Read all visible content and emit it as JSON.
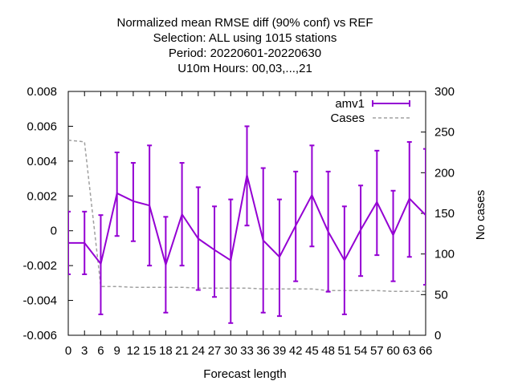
{
  "chart_data": {
    "type": "line",
    "title_lines": [
      "Normalized mean RMSE diff (90% conf) vs REF",
      "Selection: ALL using  1015 stations",
      "Period: 20220601-20220630",
      "U10m   Hours:  00,03,...,21"
    ],
    "xlabel": "Forecast length",
    "ylabel": "",
    "y2label": "No cases",
    "x_ticks": [
      0,
      3,
      6,
      9,
      12,
      15,
      18,
      21,
      24,
      27,
      30,
      33,
      36,
      39,
      42,
      45,
      48,
      51,
      54,
      57,
      60,
      63,
      66
    ],
    "xlim": [
      0,
      66
    ],
    "ylim": [
      -0.006,
      0.008
    ],
    "y_ticks": [
      -0.006,
      -0.004,
      -0.002,
      0,
      0.002,
      0.004,
      0.006,
      0.008
    ],
    "y_tick_labels": [
      "-0.006",
      "-0.004",
      "-0.002",
      "0",
      "0.002",
      "0.004",
      "0.006",
      "0.008"
    ],
    "y2lim": [
      0,
      300
    ],
    "y2_ticks": [
      0,
      50,
      100,
      150,
      200,
      250,
      300
    ],
    "legend_position": "top-right",
    "series": [
      {
        "name": "amv1",
        "color": "#9400d3",
        "style": "line-errorbars",
        "axis": "y",
        "x": [
          0,
          3,
          6,
          9,
          12,
          15,
          18,
          21,
          24,
          27,
          30,
          33,
          36,
          39,
          42,
          45,
          48,
          51,
          54,
          57,
          60,
          63,
          66
        ],
        "y": [
          -0.0007,
          -0.0007,
          -0.0019,
          0.00215,
          0.0017,
          0.00145,
          -0.00195,
          0.00095,
          -0.00045,
          -0.0011,
          -0.0017,
          0.0032,
          -0.00055,
          -0.0015,
          0.0003,
          0.00205,
          -5e-05,
          -0.0017,
          5e-05,
          0.00165,
          -0.00025,
          0.00185,
          0.0009
        ],
        "y_low": [
          -0.0025,
          -0.0025,
          -0.0048,
          -0.0003,
          -0.0006,
          -0.002,
          -0.0047,
          -0.002,
          -0.0034,
          -0.0038,
          -0.0053,
          0.0003,
          -0.0047,
          -0.0049,
          -0.0029,
          -0.0009,
          -0.0035,
          -0.0048,
          -0.0026,
          -0.0014,
          -0.0029,
          -0.0015,
          -0.0031
        ],
        "y_high": [
          0.0011,
          0.0011,
          0.0009,
          0.0045,
          0.0039,
          0.0049,
          0.0008,
          0.0039,
          0.0025,
          0.0014,
          0.0018,
          0.006,
          0.0036,
          0.0018,
          0.0034,
          0.0049,
          0.0034,
          0.0014,
          0.0026,
          0.0046,
          0.0023,
          0.0051,
          0.0047
        ]
      },
      {
        "name": "Cases",
        "color": "#a0a0a0",
        "style": "dashed-step",
        "axis": "y2",
        "x": [
          0,
          3,
          6,
          9,
          12,
          15,
          18,
          21,
          24,
          27,
          30,
          33,
          36,
          39,
          42,
          45,
          48,
          51,
          54,
          57,
          60,
          63,
          66
        ],
        "y": [
          240,
          238,
          60,
          60,
          59,
          59,
          59,
          59,
          58,
          58,
          58,
          58,
          57,
          57,
          57,
          57,
          55,
          55,
          55,
          55,
          54,
          54,
          54
        ]
      }
    ]
  }
}
